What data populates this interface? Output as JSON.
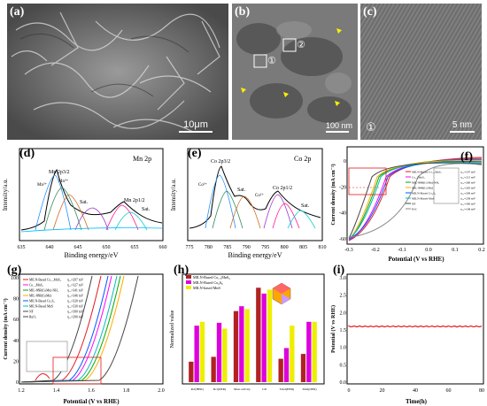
{
  "panels": {
    "a": {
      "label": "(a)",
      "scale": "10μm"
    },
    "b": {
      "label": "(b)",
      "scale": "100 nm",
      "marker1": "①",
      "marker2": "②"
    },
    "c": {
      "label": "(c)",
      "scale": "5 nm",
      "marker": "①"
    },
    "d": {
      "label": "(d)",
      "title": "Mn 2p",
      "xlabel": "Binding energy/eV",
      "ylabel": "Intensity/a.u.",
      "ticks": [
        "635",
        "640",
        "645",
        "650",
        "655",
        "660"
      ],
      "peaks": [
        "Mn 2p3/2",
        "Mn³⁺",
        "Mn²⁺",
        "Mn⁴⁺",
        "Sat.",
        "Mn²⁺",
        "Mn³⁺",
        "Mn 2p1/2",
        "Mn⁴⁺",
        "Sat."
      ]
    },
    "e": {
      "label": "(e)",
      "title": "Co 2p",
      "xlabel": "Binding energy/eV",
      "ylabel": "Intensity/a.u.",
      "ticks": [
        "775",
        "780",
        "785",
        "790",
        "795",
        "800",
        "805",
        "810"
      ],
      "peaks": [
        "Co 2p3/2",
        "Co³⁺",
        "Co²⁺",
        "Sat.",
        "Co²⁺",
        "Co 2p1/2",
        "Co³⁺",
        "Sat."
      ]
    },
    "f": {
      "label": "(f)",
      "xlabel": "Potential (V vs RHE)",
      "ylabel": "Current density (mA cm⁻²)",
      "xticks": [
        "-0.3",
        "-0.2",
        "-0.1",
        "0.0",
        "0.1",
        "0.2"
      ],
      "yticks": [
        "0",
        "-20",
        "-40",
        "-60"
      ],
      "legend": [
        "MILN-Based Co₁.₅MnS₄",
        "Co₁.₅MnS₄",
        "MIL-88B(CoMn)-NH₂",
        "MIL-88B(CoMn)",
        "MILN-Based Co₉S₈",
        "MILN-Based MnS",
        "NF",
        "Pt/C"
      ],
      "eta": [
        "η₁₀=197 mV",
        "η₁₀=215 mV",
        "η₁₀=260 mV",
        "η₁₀=265 mV",
        "η₁₀=209 mV",
        "η₁₀=258 mV",
        "η₁₀=300 mV",
        "η₁₀=108 mV"
      ]
    },
    "g": {
      "label": "(g)",
      "xlabel": "Potential (V vs RHE)",
      "ylabel": "Current density (mA cm⁻²)",
      "xticks": [
        "1.2",
        "1.4",
        "1.6",
        "1.8",
        "2.0"
      ],
      "yticks": [
        "0",
        "20",
        "40",
        "60",
        "80",
        "100"
      ],
      "legend": [
        "MILN-Based Co₁.₅MnS₄",
        "Co₁.₅MnS₄",
        "MIL-88B(CoMn)-NH₂",
        "MIL-88B(CoMn)",
        "MILN-Based Co₉S₈",
        "MILN-Based MnS",
        "NF",
        "RuO₂"
      ],
      "eta": [
        "η₁₀=297 mV",
        "η₁₀=327 mV",
        "η₁₀=341 mV",
        "η₁₀=346 mV",
        "η₁₀=320 mV",
        "η₁₀=330 mV",
        "η₁₀=390 mV",
        "η₁₀=290 mV"
      ]
    },
    "h": {
      "label": "(h)",
      "ylabel": "Normalized value",
      "legend": [
        "MILN-Based Co₁.₅MnS₄",
        "MILN-Based Co₉S₈",
        "MILN-based MnS"
      ],
      "categories": [
        "Rct(HER)",
        "Rct(OER)",
        "Mass activity",
        "Cdl",
        "Tafel(HER)",
        "Tafel(OER)"
      ],
      "values": [
        [
          0.21,
          0.26,
          0.73,
          0.97,
          0.24,
          0.29
        ],
        [
          0.58,
          0.61,
          0.78,
          0.91,
          0.35,
          0.62
        ],
        [
          0.62,
          0.55,
          0.75,
          0.95,
          0.58,
          0.62
        ]
      ]
    },
    "i": {
      "label": "(i)",
      "xlabel": "Time(h)",
      "ylabel": "Potential (V vs RHE)",
      "xticks": [
        "0",
        "20",
        "40",
        "60",
        "80"
      ],
      "yticks": [
        "0.0",
        "0.5",
        "1.0",
        "1.5",
        "2.0",
        "2.5",
        "3.0"
      ],
      "level": 1.6
    }
  },
  "colors": {
    "co15": "#e41a1c",
    "co15b": "#ff00ff",
    "nh2": "#00aa00",
    "mil": "#ffaa00",
    "co9": "#0055ff",
    "mns": "#00bbbb",
    "nf": "#444444",
    "ptc": "#888888",
    "h1": "#b22222",
    "h2": "#dd00dd",
    "h3": "#eeee00"
  }
}
